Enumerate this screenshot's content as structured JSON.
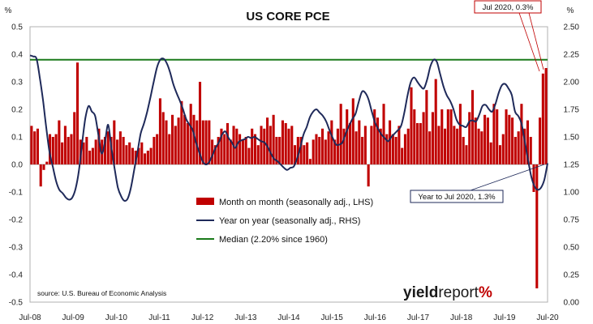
{
  "chart_data": {
    "type": "bar",
    "title": "US CORE PCE",
    "left_unit": "%",
    "right_unit": "%",
    "x_tick_labels": [
      "Jul-08",
      "Jul-09",
      "Jul-10",
      "Jul-11",
      "Jul-12",
      "Jul-13",
      "Jul-14",
      "Jul-15",
      "Jul-16",
      "Jul-17",
      "Jul-18",
      "Jul-19",
      "Jul-20"
    ],
    "left_axis": {
      "ylim": [
        -0.5,
        0.5
      ],
      "ticks": [
        "0.5",
        "0.4",
        "0.3",
        "0.2",
        "0.1",
        "0.0",
        "-0.1",
        "-0.2",
        "-0.3",
        "-0.4",
        "-0.5"
      ]
    },
    "right_axis": {
      "ylim": [
        0.0,
        2.5
      ],
      "ticks": [
        "2.50",
        "2.25",
        "2.00",
        "1.75",
        "1.50",
        "1.25",
        "1.00",
        "0.75",
        "0.50",
        "0.25",
        "0.00"
      ]
    },
    "grid": false,
    "legend_position": "lower-center",
    "series": [
      {
        "name": "Month on month (seasonally adj., LHS)",
        "kind": "bar",
        "axis": "left",
        "color": "#c00000",
        "values": [
          0.14,
          0.12,
          0.13,
          -0.08,
          -0.02,
          0.01,
          0.11,
          0.1,
          0.11,
          0.16,
          0.08,
          0.14,
          0.1,
          0.11,
          0.19,
          0.37,
          0.09,
          0.08,
          0.1,
          0.05,
          0.06,
          0.09,
          0.13,
          0.09,
          0.1,
          0.12,
          0.1,
          0.16,
          0.09,
          0.12,
          0.1,
          0.07,
          0.08,
          0.06,
          0.05,
          0.06,
          0.08,
          0.04,
          0.05,
          0.06,
          0.1,
          0.11,
          0.24,
          0.19,
          0.16,
          0.11,
          0.18,
          0.14,
          0.17,
          0.23,
          0.18,
          0.15,
          0.22,
          0.18,
          0.16,
          0.3,
          0.16,
          0.16,
          0.16,
          0.09,
          0.07,
          0.1,
          0.13,
          0.11,
          0.15,
          0.09,
          0.14,
          0.13,
          0.11,
          0.09,
          0.1,
          0.06,
          0.13,
          0.11,
          0.07,
          0.14,
          0.13,
          0.17,
          0.14,
          0.18,
          0.1,
          0.1,
          0.16,
          0.15,
          0.13,
          0.14,
          0.07,
          0.1,
          0.1,
          0.07,
          0.08,
          0.02,
          0.09,
          0.11,
          0.1,
          0.13,
          0.09,
          0.12,
          0.16,
          0.09,
          0.13,
          0.22,
          0.13,
          0.2,
          0.15,
          0.24,
          0.12,
          0.16,
          0.1,
          0.14,
          -0.08,
          0.14,
          0.2,
          0.17,
          0.13,
          0.22,
          0.11,
          0.16,
          0.11,
          0.1,
          0.14,
          0.06,
          0.11,
          0.13,
          0.28,
          0.2,
          0.15,
          0.15,
          0.19,
          0.27,
          0.12,
          0.19,
          0.31,
          0.14,
          0.2,
          0.13,
          0.2,
          0.2,
          0.14,
          0.13,
          0.22,
          0.1,
          0.07,
          0.19,
          0.27,
          0.17,
          0.13,
          0.12,
          0.18,
          0.17,
          0.08,
          0.22,
          0.2,
          0.07,
          0.11,
          0.2,
          0.18,
          0.17,
          0.1,
          0.12,
          0.22,
          0.13,
          0.16,
          0.1,
          -0.1,
          -0.45,
          0.17,
          0.33,
          0.35
        ]
      },
      {
        "name": "Year on year (seasonally adj., RHS)",
        "kind": "line",
        "axis": "right",
        "color": "#1f2a5a",
        "values": [
          2.24,
          2.23,
          2.21,
          2.04,
          1.83,
          1.58,
          1.36,
          1.23,
          1.1,
          1.02,
          0.99,
          0.95,
          0.93,
          0.95,
          1.03,
          1.19,
          1.44,
          1.67,
          1.78,
          1.73,
          1.69,
          1.52,
          1.35,
          1.45,
          1.61,
          1.4,
          1.21,
          1.04,
          0.96,
          0.92,
          0.94,
          1.04,
          1.2,
          1.36,
          1.53,
          1.62,
          1.73,
          1.86,
          2.0,
          2.13,
          2.2,
          2.21,
          2.17,
          2.09,
          1.98,
          1.9,
          1.83,
          1.75,
          1.66,
          1.61,
          1.56,
          1.45,
          1.36,
          1.28,
          1.25,
          1.27,
          1.33,
          1.4,
          1.45,
          1.52,
          1.55,
          1.49,
          1.45,
          1.4,
          1.45,
          1.47,
          1.48,
          1.5,
          1.49,
          1.5,
          1.48,
          1.46,
          1.45,
          1.41,
          1.35,
          1.3,
          1.28,
          1.25,
          1.22,
          1.2,
          1.22,
          1.23,
          1.3,
          1.4,
          1.52,
          1.59,
          1.68,
          1.73,
          1.75,
          1.72,
          1.69,
          1.64,
          1.56,
          1.49,
          1.43,
          1.43,
          1.45,
          1.53,
          1.6,
          1.66,
          1.71,
          1.82,
          1.91,
          1.9,
          1.84,
          1.73,
          1.63,
          1.57,
          1.52,
          1.49,
          1.46,
          1.5,
          1.53,
          1.56,
          1.6,
          1.72,
          1.88,
          2.0,
          2.04,
          2.0,
          1.96,
          1.94,
          2.02,
          2.14,
          2.2,
          2.18,
          2.07,
          1.96,
          1.88,
          1.83,
          1.76,
          1.66,
          1.61,
          1.6,
          1.59,
          1.64,
          1.65,
          1.64,
          1.7,
          1.78,
          1.79,
          1.75,
          1.73,
          1.8,
          1.9,
          1.97,
          1.98,
          1.94,
          1.88,
          1.73,
          1.69,
          1.62,
          1.46,
          1.29,
          1.14,
          1.05,
          1.02,
          1.04,
          1.11,
          1.26
        ]
      },
      {
        "name": "Median (2.20% since 1960)",
        "kind": "line",
        "axis": "right",
        "color": "#1a7a1a",
        "values": [
          2.2
        ]
      }
    ],
    "annotations": [
      {
        "text": "Jul 2020, 0.3%",
        "border_color": "#c00000"
      },
      {
        "text": "Year to Jul 2020, 1.3%",
        "border_color": "#1f2a5a"
      }
    ],
    "source": "source: U.S. Bureau of Economic Analysis",
    "brand": [
      "yield",
      "report",
      "%"
    ]
  }
}
